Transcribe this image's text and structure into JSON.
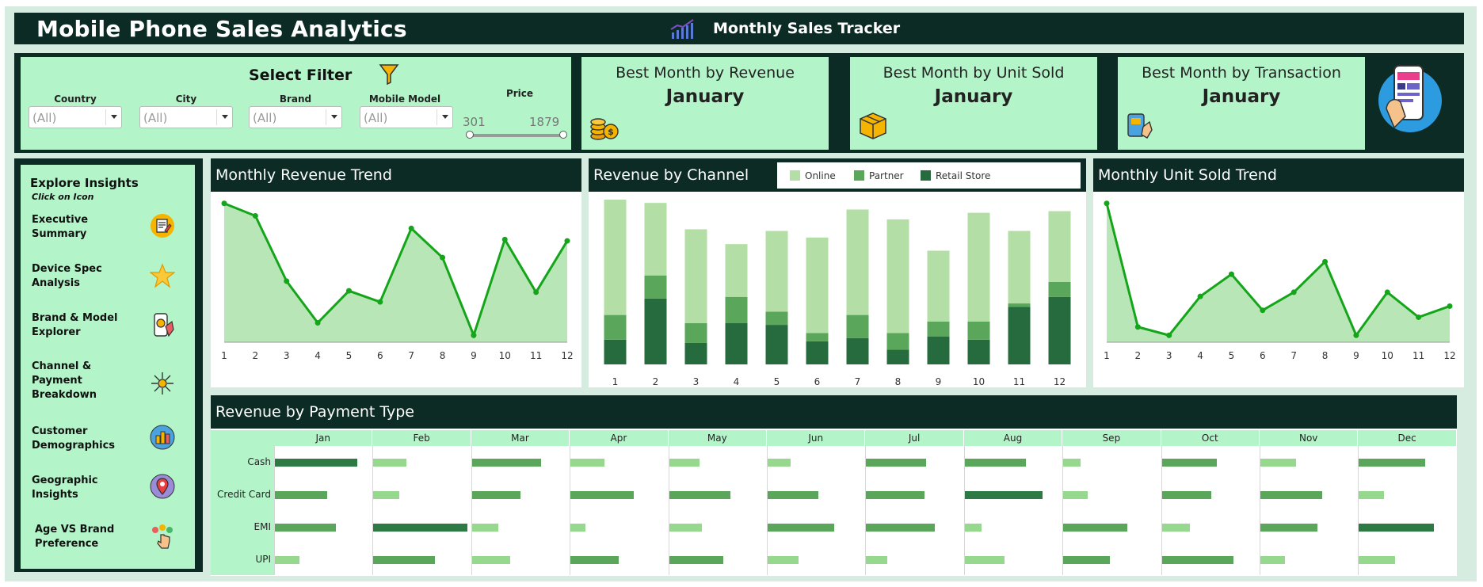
{
  "header": {
    "app_title": "Mobile Phone Sales Analytics",
    "tracker_title": "Monthly Sales Tracker",
    "tracker_icon": "bar-trend-icon"
  },
  "filters": {
    "title": "Select Filter",
    "country": {
      "label": "Country",
      "value": "(All)"
    },
    "city": {
      "label": "City",
      "value": "(All)"
    },
    "brand": {
      "label": "Brand",
      "value": "(All)"
    },
    "model": {
      "label": "Mobile Model",
      "value": "(All)"
    },
    "price": {
      "label": "Price",
      "min": "301",
      "max": "1879"
    }
  },
  "kpis": [
    {
      "title": "Best Month by Revenue",
      "value": "January",
      "icon": "coins-icon"
    },
    {
      "title": "Best Month by Unit Sold",
      "value": "January",
      "icon": "box-icon"
    },
    {
      "title": "Best Month by Transaction",
      "value": "January",
      "icon": "card-transaction-icon"
    }
  ],
  "sidebar": {
    "title": "Explore Insights",
    "subtitle": "Click on Icon",
    "items": [
      {
        "label": "Executive Summary",
        "icon": "report-icon"
      },
      {
        "label": "Device Spec Analysis",
        "icon": "star-icon"
      },
      {
        "label": "Brand & Model Explorer",
        "icon": "phone-explore-icon"
      },
      {
        "label": "Channel & Payment Breakdown",
        "icon": "network-icon"
      },
      {
        "label": "Customer Demographics",
        "icon": "demographics-icon"
      },
      {
        "label": "Geographic Insights",
        "icon": "map-pin-icon"
      },
      {
        "label": "Age VS Brand Preference",
        "icon": "hand-click-icon"
      }
    ]
  },
  "colors": {
    "dark": "#0c2b24",
    "light_green": "#b3f5c9",
    "line": "#15a51b",
    "area": "#b9e6b6",
    "online": "#b3dfa6",
    "partner": "#5aa65a",
    "retail": "#266b3e"
  },
  "chart_data": [
    {
      "type": "area",
      "title": "Monthly Revenue Trend",
      "x": [
        1,
        2,
        3,
        4,
        5,
        6,
        7,
        8,
        9,
        10,
        11,
        12
      ],
      "values": [
        100,
        91,
        44,
        14,
        37,
        29,
        82,
        61,
        5,
        74,
        36,
        73
      ],
      "ylim": [
        0,
        105
      ]
    },
    {
      "type": "bar",
      "stacked": true,
      "title": "Revenue by Channel",
      "categories": [
        1,
        2,
        3,
        4,
        5,
        6,
        7,
        8,
        9,
        10,
        11,
        12
      ],
      "series": [
        {
          "name": "Online",
          "values": [
            70,
            44,
            57,
            32,
            49,
            58,
            64,
            69,
            43,
            66,
            44,
            43
          ]
        },
        {
          "name": "Partner",
          "values": [
            15,
            14,
            12,
            16,
            8,
            5,
            14,
            10,
            9,
            11,
            2,
            9
          ]
        },
        {
          "name": "Retail Store",
          "values": [
            15,
            40,
            13,
            25,
            24,
            14,
            16,
            9,
            17,
            15,
            35,
            41
          ]
        }
      ],
      "ylim": [
        0,
        100
      ],
      "legend": "top"
    },
    {
      "type": "area",
      "title": "Monthly Unit Sold Trend",
      "x": [
        1,
        2,
        3,
        4,
        5,
        6,
        7,
        8,
        9,
        10,
        11,
        12
      ],
      "values": [
        100,
        11,
        5,
        33,
        49,
        23,
        36,
        58,
        5,
        36,
        18,
        26
      ],
      "ylim": [
        0,
        105
      ]
    },
    {
      "type": "bar",
      "title": "Revenue by Payment Type",
      "columns": [
        "Jan",
        "Feb",
        "Mar",
        "Apr",
        "May",
        "Jun",
        "Jul",
        "Aug",
        "Sep",
        "Oct",
        "Nov",
        "Dec"
      ],
      "rows": [
        "Cash",
        "Credit Card",
        "EMI",
        "UPI"
      ],
      "values": [
        [
          85,
          34,
          71,
          35,
          31,
          24,
          62,
          63,
          18,
          57,
          37,
          68
        ],
        [
          54,
          27,
          50,
          65,
          63,
          52,
          60,
          80,
          25,
          51,
          64,
          26
        ],
        [
          63,
          97,
          27,
          15,
          34,
          69,
          71,
          17,
          66,
          29,
          59,
          77
        ],
        [
          25,
          63,
          39,
          50,
          56,
          32,
          22,
          41,
          48,
          74,
          25,
          37
        ]
      ]
    }
  ]
}
